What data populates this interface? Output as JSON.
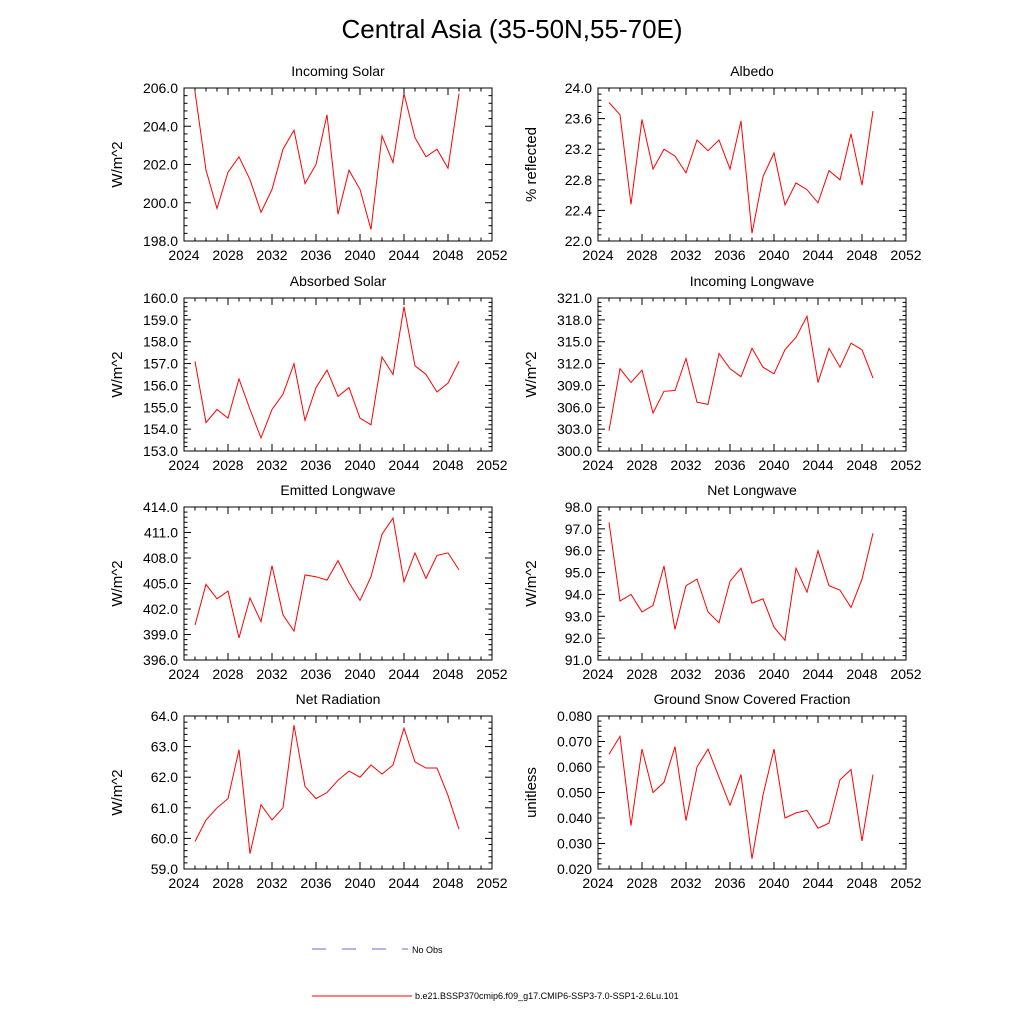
{
  "title": "Central Asia (35-50N,55-70E)",
  "legend": {
    "no_obs_label": "No Obs",
    "no_obs_color": "#6a6ad0",
    "model_label": "b.e21.BSSP370cmip6.f09_g17.CMIP6-SSP3-7.0-SSP1-2.6Lu.101",
    "model_color": "#ff0000"
  },
  "chart_data": [
    {
      "type": "line",
      "title": "Incoming Solar",
      "ylabel": "W/m^2",
      "xlim": [
        2024,
        2052
      ],
      "xticks": [
        2024,
        2028,
        2032,
        2036,
        2040,
        2044,
        2048,
        2052
      ],
      "ylim": [
        198.0,
        206.0
      ],
      "yticks": [
        "198.0",
        "200.0",
        "202.0",
        "204.0",
        "206.0"
      ],
      "x": [
        2025,
        2026,
        2027,
        2028,
        2029,
        2030,
        2031,
        2032,
        2033,
        2034,
        2035,
        2036,
        2037,
        2038,
        2039,
        2040,
        2041,
        2042,
        2043,
        2044,
        2045,
        2046,
        2047,
        2048,
        2049
      ],
      "values": [
        205.8,
        201.7,
        199.7,
        201.6,
        202.4,
        201.2,
        199.5,
        200.7,
        202.8,
        203.8,
        201.0,
        202.0,
        204.6,
        199.4,
        201.7,
        200.7,
        198.6,
        203.5,
        202.1,
        205.7,
        203.4,
        202.4,
        202.8,
        201.8,
        205.7
      ]
    },
    {
      "type": "line",
      "title": "Albedo",
      "ylabel": "% reflected",
      "xlim": [
        2024,
        2052
      ],
      "xticks": [
        2024,
        2028,
        2032,
        2036,
        2040,
        2044,
        2048,
        2052
      ],
      "ylim": [
        22.0,
        24.0
      ],
      "yticks": [
        "22.0",
        "22.4",
        "22.8",
        "23.2",
        "23.6",
        "24.0"
      ],
      "x": [
        2025,
        2026,
        2027,
        2028,
        2029,
        2030,
        2031,
        2032,
        2033,
        2034,
        2035,
        2036,
        2037,
        2038,
        2039,
        2040,
        2041,
        2042,
        2043,
        2044,
        2045,
        2046,
        2047,
        2048,
        2049
      ],
      "values": [
        23.81,
        23.65,
        22.48,
        23.59,
        22.94,
        23.2,
        23.11,
        22.89,
        23.32,
        23.18,
        23.32,
        22.94,
        23.57,
        22.1,
        22.84,
        23.15,
        22.47,
        22.76,
        22.67,
        22.5,
        22.92,
        22.8,
        23.4,
        22.73,
        23.7
      ]
    },
    {
      "type": "line",
      "title": "Absorbed Solar",
      "ylabel": "W/m^2",
      "xlim": [
        2024,
        2052
      ],
      "xticks": [
        2024,
        2028,
        2032,
        2036,
        2040,
        2044,
        2048,
        2052
      ],
      "ylim": [
        153.0,
        160.0
      ],
      "yticks": [
        "153.0",
        "154.0",
        "155.0",
        "156.0",
        "157.0",
        "158.0",
        "159.0",
        "160.0"
      ],
      "x": [
        2025,
        2026,
        2027,
        2028,
        2029,
        2030,
        2031,
        2032,
        2033,
        2034,
        2035,
        2036,
        2037,
        2038,
        2039,
        2040,
        2041,
        2042,
        2043,
        2044,
        2045,
        2046,
        2047,
        2048,
        2049
      ],
      "values": [
        157.1,
        154.3,
        154.9,
        154.5,
        156.3,
        154.9,
        153.6,
        154.9,
        155.6,
        157.0,
        154.4,
        155.9,
        156.7,
        155.5,
        155.9,
        154.5,
        154.2,
        157.3,
        156.5,
        159.6,
        156.9,
        156.5,
        155.7,
        156.1,
        157.1
      ]
    },
    {
      "type": "line",
      "title": "Incoming Longwave",
      "ylabel": "W/m^2",
      "xlim": [
        2024,
        2052
      ],
      "xticks": [
        2024,
        2028,
        2032,
        2036,
        2040,
        2044,
        2048,
        2052
      ],
      "ylim": [
        300.0,
        321.0
      ],
      "yticks": [
        "300.0",
        "303.0",
        "306.0",
        "309.0",
        "312.0",
        "315.0",
        "318.0",
        "321.0"
      ],
      "x": [
        2025,
        2026,
        2027,
        2028,
        2029,
        2030,
        2031,
        2032,
        2033,
        2034,
        2035,
        2036,
        2037,
        2038,
        2039,
        2040,
        2041,
        2042,
        2043,
        2044,
        2045,
        2046,
        2047,
        2048,
        2049
      ],
      "values": [
        302.8,
        311.3,
        309.4,
        311.1,
        305.2,
        308.2,
        308.3,
        312.7,
        306.7,
        306.4,
        313.4,
        311.3,
        310.2,
        314.1,
        311.5,
        310.6,
        313.9,
        315.6,
        318.5,
        309.4,
        314.1,
        311.5,
        314.8,
        313.9,
        310.0
      ]
    },
    {
      "type": "line",
      "title": "Emitted Longwave",
      "ylabel": "W/m^2",
      "xlim": [
        2024,
        2052
      ],
      "xticks": [
        2024,
        2028,
        2032,
        2036,
        2040,
        2044,
        2048,
        2052
      ],
      "ylim": [
        396.0,
        414.0
      ],
      "yticks": [
        "396.0",
        "399.0",
        "402.0",
        "405.0",
        "408.0",
        "411.0",
        "414.0"
      ],
      "x": [
        2025,
        2026,
        2027,
        2028,
        2029,
        2030,
        2031,
        2032,
        2033,
        2034,
        2035,
        2036,
        2037,
        2038,
        2039,
        2040,
        2041,
        2042,
        2043,
        2044,
        2045,
        2046,
        2047,
        2048,
        2049
      ],
      "values": [
        400.1,
        404.9,
        403.2,
        404.1,
        398.6,
        403.3,
        400.5,
        407.1,
        401.3,
        399.4,
        406.0,
        405.8,
        405.4,
        407.7,
        405.1,
        403.0,
        405.8,
        410.8,
        412.7,
        405.2,
        408.6,
        405.6,
        408.3,
        408.6,
        406.6
      ]
    },
    {
      "type": "line",
      "title": "Net Longwave",
      "ylabel": "W/m^2",
      "xlim": [
        2024,
        2052
      ],
      "xticks": [
        2024,
        2028,
        2032,
        2036,
        2040,
        2044,
        2048,
        2052
      ],
      "ylim": [
        91.0,
        98.0
      ],
      "yticks": [
        "91.0",
        "92.0",
        "93.0",
        "94.0",
        "95.0",
        "96.0",
        "97.0",
        "98.0"
      ],
      "x": [
        2025,
        2026,
        2027,
        2028,
        2029,
        2030,
        2031,
        2032,
        2033,
        2034,
        2035,
        2036,
        2037,
        2038,
        2039,
        2040,
        2041,
        2042,
        2043,
        2044,
        2045,
        2046,
        2047,
        2048,
        2049
      ],
      "values": [
        97.3,
        93.7,
        94.0,
        93.2,
        93.5,
        95.3,
        92.4,
        94.4,
        94.7,
        93.2,
        92.7,
        94.6,
        95.2,
        93.6,
        93.8,
        92.5,
        91.9,
        95.2,
        94.1,
        96.0,
        94.4,
        94.2,
        93.4,
        94.7,
        96.8
      ]
    },
    {
      "type": "line",
      "title": "Net Radiation",
      "ylabel": "W/m^2",
      "xlim": [
        2024,
        2052
      ],
      "xticks": [
        2024,
        2028,
        2032,
        2036,
        2040,
        2044,
        2048,
        2052
      ],
      "ylim": [
        59.0,
        64.0
      ],
      "yticks": [
        "59.0",
        "60.0",
        "61.0",
        "62.0",
        "63.0",
        "64.0"
      ],
      "x": [
        2025,
        2026,
        2027,
        2028,
        2029,
        2030,
        2031,
        2032,
        2033,
        2034,
        2035,
        2036,
        2037,
        2038,
        2039,
        2040,
        2041,
        2042,
        2043,
        2044,
        2045,
        2046,
        2047,
        2048,
        2049
      ],
      "values": [
        59.9,
        60.6,
        61.0,
        61.3,
        62.9,
        59.5,
        61.1,
        60.6,
        61.0,
        63.7,
        61.7,
        61.3,
        61.5,
        61.9,
        62.2,
        62.0,
        62.4,
        62.1,
        62.4,
        63.6,
        62.5,
        62.3,
        62.3,
        61.4,
        60.3
      ]
    },
    {
      "type": "line",
      "title": "Ground Snow Covered Fraction",
      "ylabel": "unitless",
      "xlim": [
        2024,
        2052
      ],
      "xticks": [
        2024,
        2028,
        2032,
        2036,
        2040,
        2044,
        2048,
        2052
      ],
      "ylim": [
        0.02,
        0.08
      ],
      "yticks": [
        "0.020",
        "0.030",
        "0.040",
        "0.050",
        "0.060",
        "0.070",
        "0.080"
      ],
      "x": [
        2025,
        2026,
        2027,
        2028,
        2029,
        2030,
        2031,
        2032,
        2033,
        2034,
        2035,
        2036,
        2037,
        2038,
        2039,
        2040,
        2041,
        2042,
        2043,
        2044,
        2045,
        2046,
        2047,
        2048,
        2049
      ],
      "values": [
        0.065,
        0.072,
        0.037,
        0.067,
        0.05,
        0.054,
        0.068,
        0.039,
        0.06,
        0.067,
        0.056,
        0.045,
        0.057,
        0.024,
        0.049,
        0.067,
        0.04,
        0.042,
        0.043,
        0.036,
        0.038,
        0.055,
        0.059,
        0.031,
        0.057
      ]
    }
  ]
}
